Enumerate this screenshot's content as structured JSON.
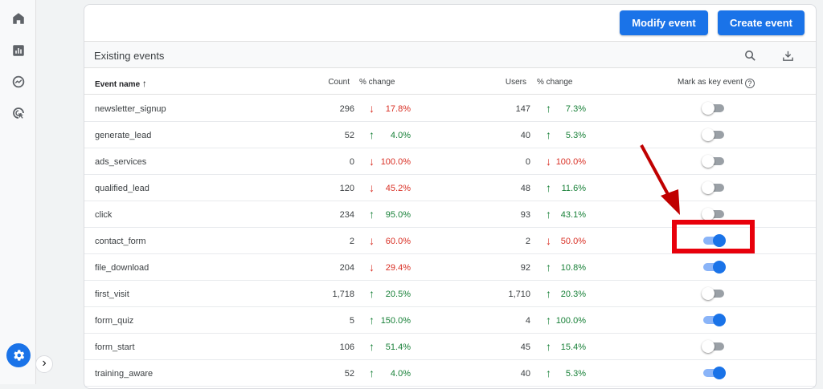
{
  "toolbar": {
    "modify_label": "Modify event",
    "create_label": "Create event"
  },
  "section": {
    "title": "Existing events"
  },
  "columns": {
    "event_name": "Event name",
    "sort_arrow": "↑",
    "count": "Count",
    "count_change": "% change",
    "users": "Users",
    "users_change": "% change",
    "key_event": "Mark as key event",
    "help": "?"
  },
  "rows": [
    {
      "name": "newsletter_signup",
      "count": "296",
      "count_dir": "down",
      "count_pct": "17.8%",
      "users": "147",
      "users_dir": "up",
      "users_pct": "7.3%",
      "key": false
    },
    {
      "name": "generate_lead",
      "count": "52",
      "count_dir": "up",
      "count_pct": "4.0%",
      "users": "40",
      "users_dir": "up",
      "users_pct": "5.3%",
      "key": false
    },
    {
      "name": "ads_services",
      "count": "0",
      "count_dir": "down",
      "count_pct": "100.0%",
      "users": "0",
      "users_dir": "down",
      "users_pct": "100.0%",
      "key": false
    },
    {
      "name": "qualified_lead",
      "count": "120",
      "count_dir": "down",
      "count_pct": "45.2%",
      "users": "48",
      "users_dir": "up",
      "users_pct": "11.6%",
      "key": false
    },
    {
      "name": "click",
      "count": "234",
      "count_dir": "up",
      "count_pct": "95.0%",
      "users": "93",
      "users_dir": "up",
      "users_pct": "43.1%",
      "key": false
    },
    {
      "name": "contact_form",
      "count": "2",
      "count_dir": "down",
      "count_pct": "60.0%",
      "users": "2",
      "users_dir": "down",
      "users_pct": "50.0%",
      "key": true
    },
    {
      "name": "file_download",
      "count": "204",
      "count_dir": "down",
      "count_pct": "29.4%",
      "users": "92",
      "users_dir": "up",
      "users_pct": "10.8%",
      "key": true
    },
    {
      "name": "first_visit",
      "count": "1,718",
      "count_dir": "up",
      "count_pct": "20.5%",
      "users": "1,710",
      "users_dir": "up",
      "users_pct": "20.3%",
      "key": false
    },
    {
      "name": "form_quiz",
      "count": "5",
      "count_dir": "up",
      "count_pct": "150.0%",
      "users": "4",
      "users_dir": "up",
      "users_pct": "100.0%",
      "key": true
    },
    {
      "name": "form_start",
      "count": "106",
      "count_dir": "up",
      "count_pct": "51.4%",
      "users": "45",
      "users_dir": "up",
      "users_pct": "15.4%",
      "key": false
    },
    {
      "name": "training_aware",
      "count": "52",
      "count_dir": "up",
      "count_pct": "4.0%",
      "users": "40",
      "users_dir": "up",
      "users_pct": "5.3%",
      "key": true
    }
  ],
  "icons": {
    "nav": [
      "home-icon",
      "reports-icon",
      "explore-icon",
      "advertising-icon"
    ],
    "gear": "gear-icon",
    "expand": "chevron-right-icon",
    "search": "search-icon",
    "download": "download-icon"
  },
  "glyphs": {
    "up": "↑",
    "down": "↓",
    "expand": "›"
  },
  "colors": {
    "primary": "#1a73e8",
    "up": "#188038",
    "down": "#d93025",
    "annotation": "#e8000b"
  }
}
